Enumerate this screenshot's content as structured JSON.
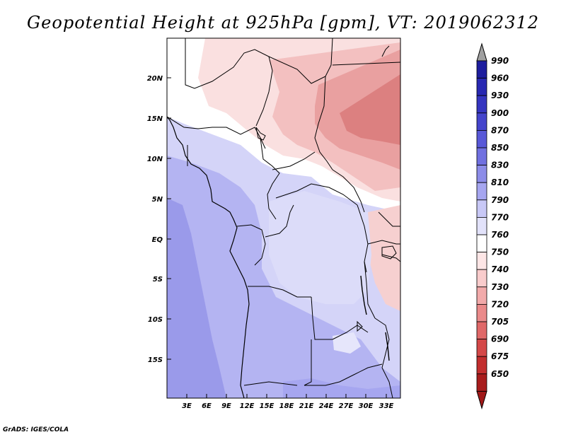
{
  "title": "Geopotential Height at 925hPa [gpm], VT: 2019062312",
  "credit": "GrADS: IGES/COLA",
  "lat_labels": [
    "20N",
    "15N",
    "10N",
    "5N",
    "EQ",
    "5S",
    "10S",
    "15S"
  ],
  "lon_labels": [
    "3E",
    "6E",
    "9E",
    "12E",
    "15E",
    "18E",
    "21E",
    "24E",
    "27E",
    "30E",
    "33E"
  ],
  "colorbar": {
    "levels": [
      "990",
      "960",
      "930",
      "900",
      "870",
      "850",
      "830",
      "810",
      "790",
      "770",
      "760",
      "750",
      "740",
      "730",
      "720",
      "705",
      "690",
      "675",
      "650"
    ],
    "colors": [
      "#1d1d9e",
      "#2828b2",
      "#3535c0",
      "#4444cc",
      "#5858d8",
      "#7070e0",
      "#8c8ce8",
      "#a6a6f0",
      "#c8c8f6",
      "#e2e2fa",
      "#ffffff",
      "#fde6e6",
      "#f9cccc",
      "#f2aaaa",
      "#ea8a8a",
      "#e06868",
      "#d44848",
      "#c22e2e",
      "#a81c1c"
    ],
    "top_arrow_color": "#a0a0a0",
    "bottom_arrow_color": "#a01818"
  },
  "map": {
    "region": "Central Africa, 18S–25N, 0E–35E",
    "palette": {
      "deep_blue": "#9a9aea",
      "mid_blue": "#b4b4f2",
      "light_blue": "#d4d4f8",
      "pale_blue": "#e6e6fb",
      "white": "#ffffff",
      "pale_red": "#fae0e0",
      "light_red": "#f3c0c0",
      "mid_red": "#e9a0a0",
      "deep_red": "#dc8080"
    }
  }
}
